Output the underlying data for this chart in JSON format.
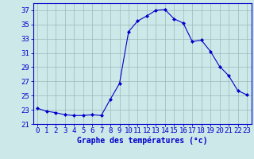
{
  "hours": [
    0,
    1,
    2,
    3,
    4,
    5,
    6,
    7,
    8,
    9,
    10,
    11,
    12,
    13,
    14,
    15,
    16,
    17,
    18,
    19,
    20,
    21,
    22,
    23
  ],
  "temperatures": [
    23.2,
    22.8,
    22.6,
    22.3,
    22.2,
    22.2,
    22.3,
    22.2,
    24.5,
    26.7,
    34.0,
    35.5,
    36.2,
    37.0,
    37.1,
    35.8,
    35.2,
    32.6,
    32.8,
    31.2,
    29.1,
    27.8,
    25.7,
    25.1
  ],
  "line_color": "#0000cc",
  "marker": "D",
  "marker_size": 2.0,
  "bg_color": "#cce8e8",
  "grid_color": "#99bbbb",
  "xlabel": "Graphe des températures (°c)",
  "ylim": [
    21,
    38
  ],
  "yticks": [
    21,
    23,
    25,
    27,
    29,
    31,
    33,
    35,
    37
  ],
  "xlim": [
    -0.5,
    23.5
  ],
  "tick_label_color": "#0000cc",
  "xlabel_fontsize": 7.0,
  "tick_fontsize": 6.5,
  "xlabel_fontweight": "bold"
}
